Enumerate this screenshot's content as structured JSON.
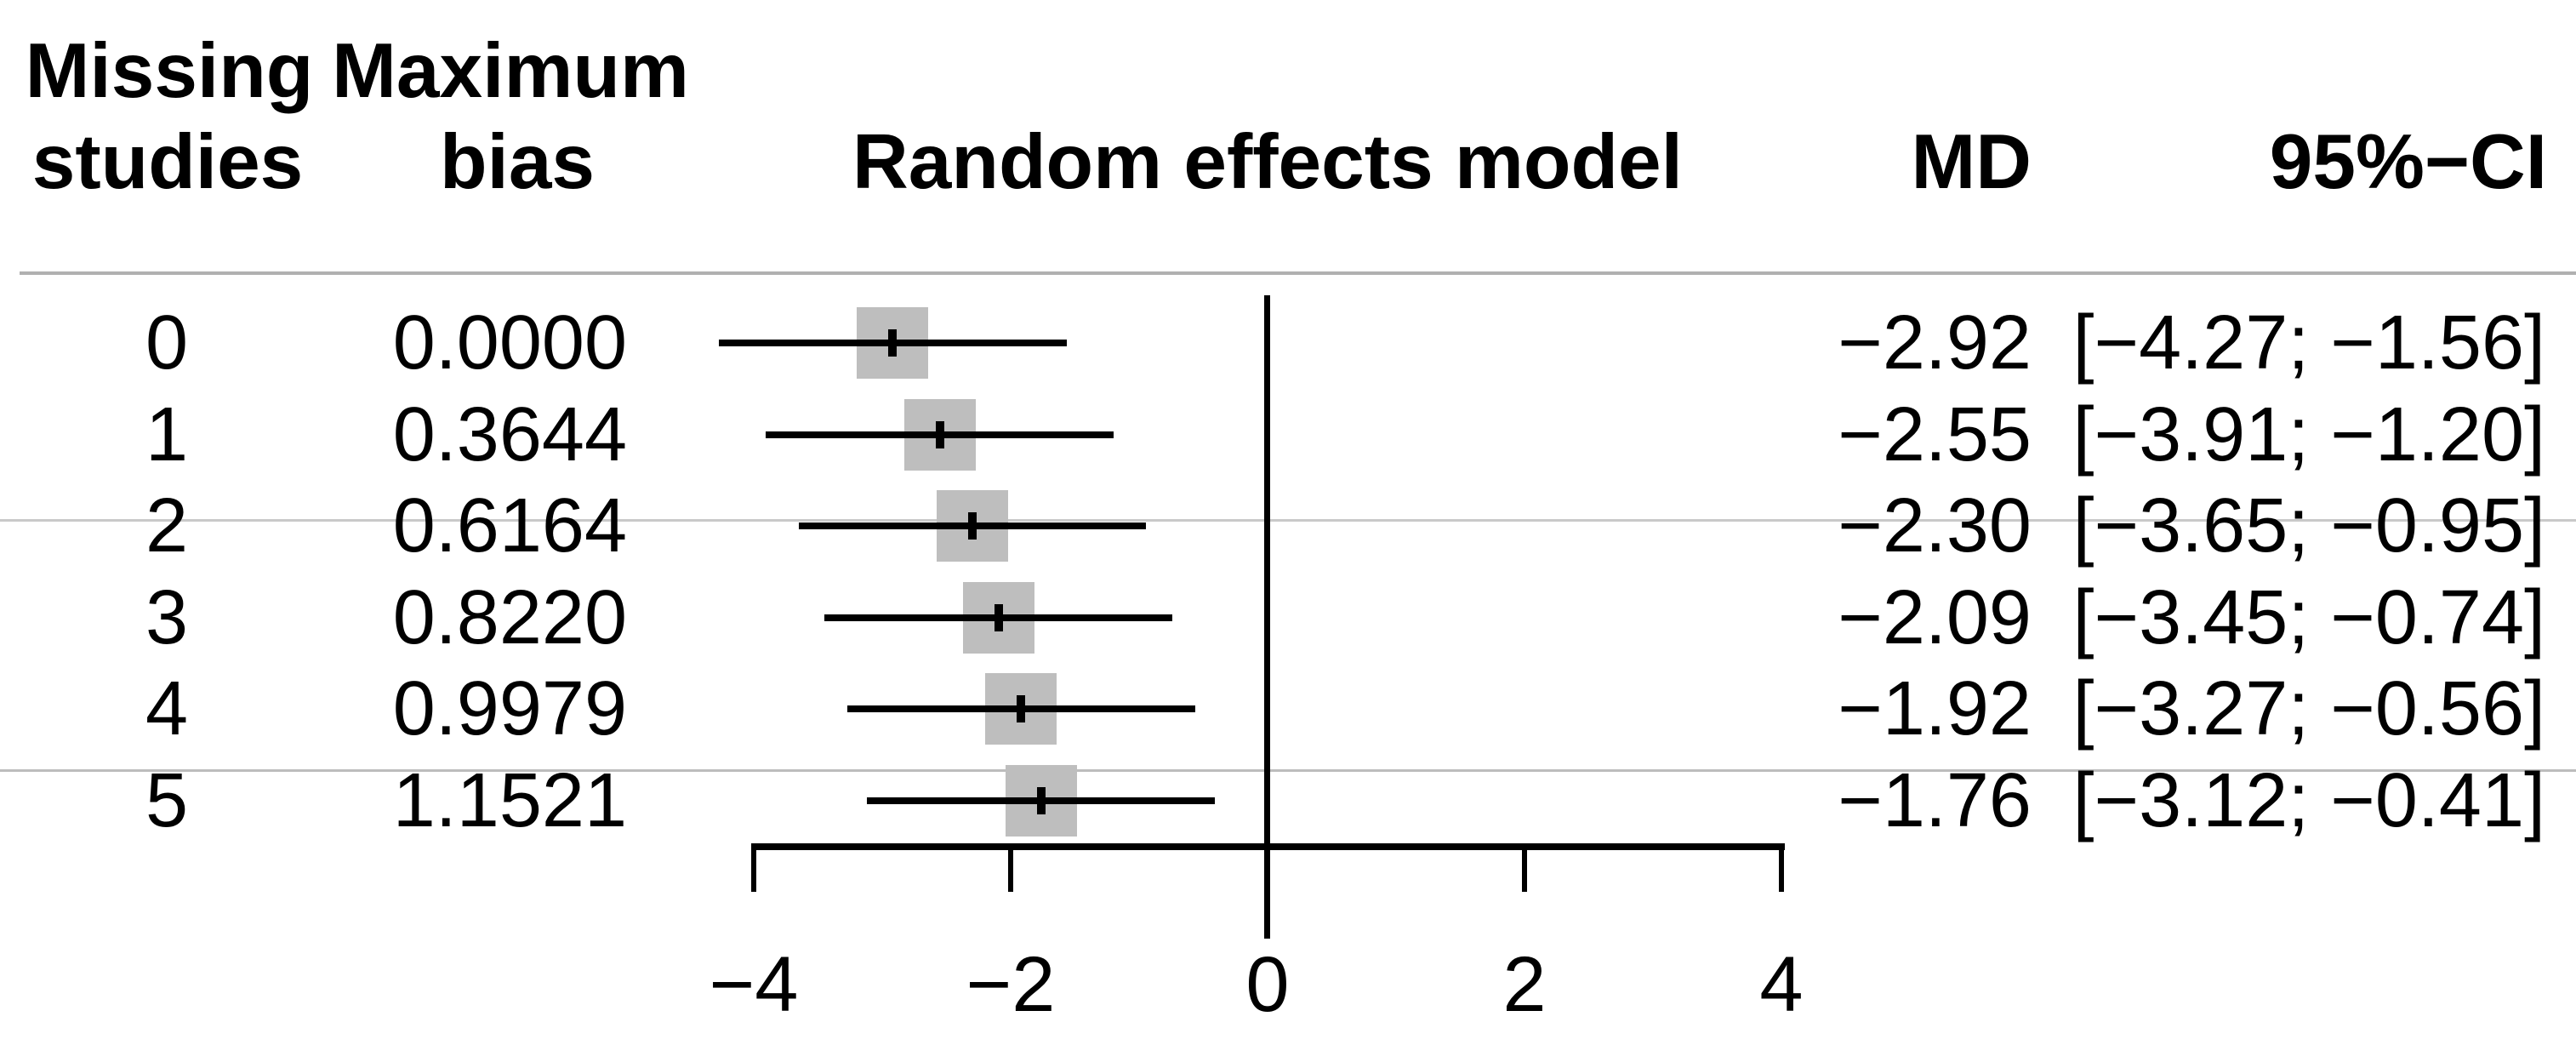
{
  "header": {
    "missing_line1": "Missing",
    "missing_line2": "studies",
    "bias_line1": "Maximum",
    "bias_line2": "bias",
    "model": "Random effects model",
    "md": "MD",
    "ci": "95%−CI"
  },
  "rows": [
    {
      "missing": "0",
      "bias": "0.0000",
      "md_label": "−2.92",
      "ci_label": "[−4.27; −1.56]",
      "md": -2.92,
      "ci_low": -4.27,
      "ci_high": -1.56
    },
    {
      "missing": "1",
      "bias": "0.3644",
      "md_label": "−2.55",
      "ci_label": "[−3.91; −1.20]",
      "md": -2.55,
      "ci_low": -3.91,
      "ci_high": -1.2
    },
    {
      "missing": "2",
      "bias": "0.6164",
      "md_label": "−2.30",
      "ci_label": "[−3.65; −0.95]",
      "md": -2.3,
      "ci_low": -3.65,
      "ci_high": -0.95
    },
    {
      "missing": "3",
      "bias": "0.8220",
      "md_label": "−2.09",
      "ci_label": "[−3.45; −0.74]",
      "md": -2.09,
      "ci_low": -3.45,
      "ci_high": -0.74
    },
    {
      "missing": "4",
      "bias": "0.9979",
      "md_label": "−1.92",
      "ci_label": "[−3.27; −0.56]",
      "md": -1.92,
      "ci_low": -3.27,
      "ci_high": -0.56
    },
    {
      "missing": "5",
      "bias": "1.1521",
      "md_label": "−1.76",
      "ci_label": "[−3.12; −0.41]",
      "md": -1.76,
      "ci_low": -3.12,
      "ci_high": -0.41
    }
  ],
  "axis": {
    "tick_values": [
      -4,
      -2,
      0,
      2,
      4
    ],
    "tick_labels": [
      "−4",
      "−2",
      "0",
      "2",
      "4"
    ],
    "reference_line": 0
  },
  "colors": {
    "square_fill": "#bebebe",
    "line": "#000000",
    "header_separator": "#b0b0b0",
    "faint_gridline": "#c9c9c9",
    "background": "#ffffff"
  },
  "chart_data": {
    "type": "forest",
    "title": "Random effects model",
    "effect_measure": "MD",
    "columns": [
      "Missing studies",
      "Maximum bias",
      "Random effects model",
      "MD",
      "95%-CI"
    ],
    "categories": [
      "0",
      "1",
      "2",
      "3",
      "4",
      "5"
    ],
    "rows": [
      {
        "missing_studies": 0,
        "maximum_bias": 0.0,
        "md": -2.92,
        "ci95": [
          -4.27,
          -1.56
        ]
      },
      {
        "missing_studies": 1,
        "maximum_bias": 0.3644,
        "md": -2.55,
        "ci95": [
          -3.91,
          -1.2
        ]
      },
      {
        "missing_studies": 2,
        "maximum_bias": 0.6164,
        "md": -2.3,
        "ci95": [
          -3.65,
          -0.95
        ]
      },
      {
        "missing_studies": 3,
        "maximum_bias": 0.822,
        "md": -2.09,
        "ci95": [
          -3.45,
          -0.74
        ]
      },
      {
        "missing_studies": 4,
        "maximum_bias": 0.9979,
        "md": -1.92,
        "ci95": [
          -3.27,
          -0.56
        ]
      },
      {
        "missing_studies": 5,
        "maximum_bias": 1.1521,
        "md": -1.76,
        "ci95": [
          -3.12,
          -0.41
        ]
      }
    ],
    "x_axis": {
      "ticks": [
        -4,
        -2,
        0,
        2,
        4
      ],
      "range": [
        -4.6,
        4.2
      ],
      "reference_line_at": 0,
      "grid": false
    },
    "legend": "none",
    "marker": "gray square with black CI whisker and black point tick"
  }
}
